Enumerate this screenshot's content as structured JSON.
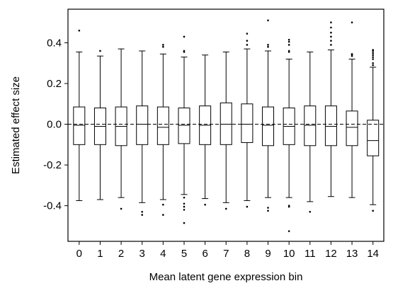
{
  "chart_data": {
    "type": "box",
    "xlabel": "Mean latent gene expression bin",
    "ylabel": "Estimated effect size",
    "ylim": [
      -0.575,
      0.565
    ],
    "yticks": [
      -0.4,
      -0.2,
      0.0,
      0.2,
      0.4
    ],
    "ytick_labels": [
      "-0.4",
      "-0.2",
      "0.0",
      "0.2",
      "0.4"
    ],
    "reference_line": {
      "y": 0.0,
      "style": "dashed"
    },
    "grid": false,
    "legend": "none",
    "colors": {
      "line": "#000000",
      "background": "#ffffff"
    },
    "boxes": [
      {
        "label": "0",
        "q1": -0.1,
        "median": -0.005,
        "q3": 0.085,
        "whisker_low": -0.375,
        "whisker_high": 0.355,
        "outliers": [
          0.46
        ]
      },
      {
        "label": "1",
        "q1": -0.1,
        "median": -0.01,
        "q3": 0.08,
        "whisker_low": -0.37,
        "whisker_high": 0.335,
        "outliers": [
          0.36
        ]
      },
      {
        "label": "2",
        "q1": -0.105,
        "median": -0.01,
        "q3": 0.085,
        "whisker_low": -0.36,
        "whisker_high": 0.37,
        "outliers": [
          -0.415
        ]
      },
      {
        "label": "3",
        "q1": -0.1,
        "median": 0.0,
        "q3": 0.09,
        "whisker_low": -0.385,
        "whisker_high": 0.36,
        "outliers": [
          -0.43,
          -0.445
        ]
      },
      {
        "label": "4",
        "q1": -0.1,
        "median": -0.015,
        "q3": 0.085,
        "whisker_low": -0.37,
        "whisker_high": 0.345,
        "outliers": [
          0.38,
          0.39,
          -0.395,
          -0.445
        ]
      },
      {
        "label": "5",
        "q1": -0.095,
        "median": -0.005,
        "q3": 0.08,
        "whisker_low": -0.345,
        "whisker_high": 0.33,
        "outliers": [
          0.355,
          0.36,
          0.43,
          -0.36,
          -0.39,
          -0.405,
          -0.42,
          -0.485
        ]
      },
      {
        "label": "6",
        "q1": -0.1,
        "median": -0.005,
        "q3": 0.09,
        "whisker_low": -0.365,
        "whisker_high": 0.34,
        "outliers": [
          -0.395
        ]
      },
      {
        "label": "7",
        "q1": -0.1,
        "median": 0.0,
        "q3": 0.105,
        "whisker_low": -0.385,
        "whisker_high": 0.355,
        "outliers": [
          -0.415
        ]
      },
      {
        "label": "8",
        "q1": -0.09,
        "median": 0.0,
        "q3": 0.1,
        "whisker_low": -0.375,
        "whisker_high": 0.37,
        "outliers": [
          0.39,
          0.41,
          0.445,
          -0.405
        ]
      },
      {
        "label": "9",
        "q1": -0.105,
        "median": -0.005,
        "q3": 0.085,
        "whisker_low": -0.36,
        "whisker_high": 0.36,
        "outliers": [
          0.38,
          0.39,
          0.51,
          -0.41,
          -0.425
        ]
      },
      {
        "label": "10",
        "q1": -0.1,
        "median": -0.01,
        "q3": 0.08,
        "whisker_low": -0.36,
        "whisker_high": 0.32,
        "outliers": [
          0.355,
          0.36,
          0.39,
          0.405,
          0.415,
          -0.4,
          -0.405,
          -0.525
        ]
      },
      {
        "label": "11",
        "q1": -0.105,
        "median": -0.005,
        "q3": 0.09,
        "whisker_low": -0.38,
        "whisker_high": 0.355,
        "outliers": [
          -0.43
        ]
      },
      {
        "label": "12",
        "q1": -0.105,
        "median": -0.01,
        "q3": 0.09,
        "whisker_low": -0.355,
        "whisker_high": 0.365,
        "outliers": [
          0.39,
          0.41,
          0.43,
          0.45,
          0.475,
          0.5
        ]
      },
      {
        "label": "13",
        "q1": -0.105,
        "median": -0.015,
        "q3": 0.065,
        "whisker_low": -0.36,
        "whisker_high": 0.32,
        "outliers": [
          0.335,
          0.34,
          0.345,
          0.5
        ]
      },
      {
        "label": "14",
        "q1": -0.155,
        "median": -0.08,
        "q3": 0.02,
        "whisker_low": -0.395,
        "whisker_high": 0.28,
        "outliers": [
          0.29,
          0.3,
          0.32,
          0.33,
          0.34,
          0.35,
          0.36,
          0.365,
          -0.425
        ]
      }
    ]
  }
}
